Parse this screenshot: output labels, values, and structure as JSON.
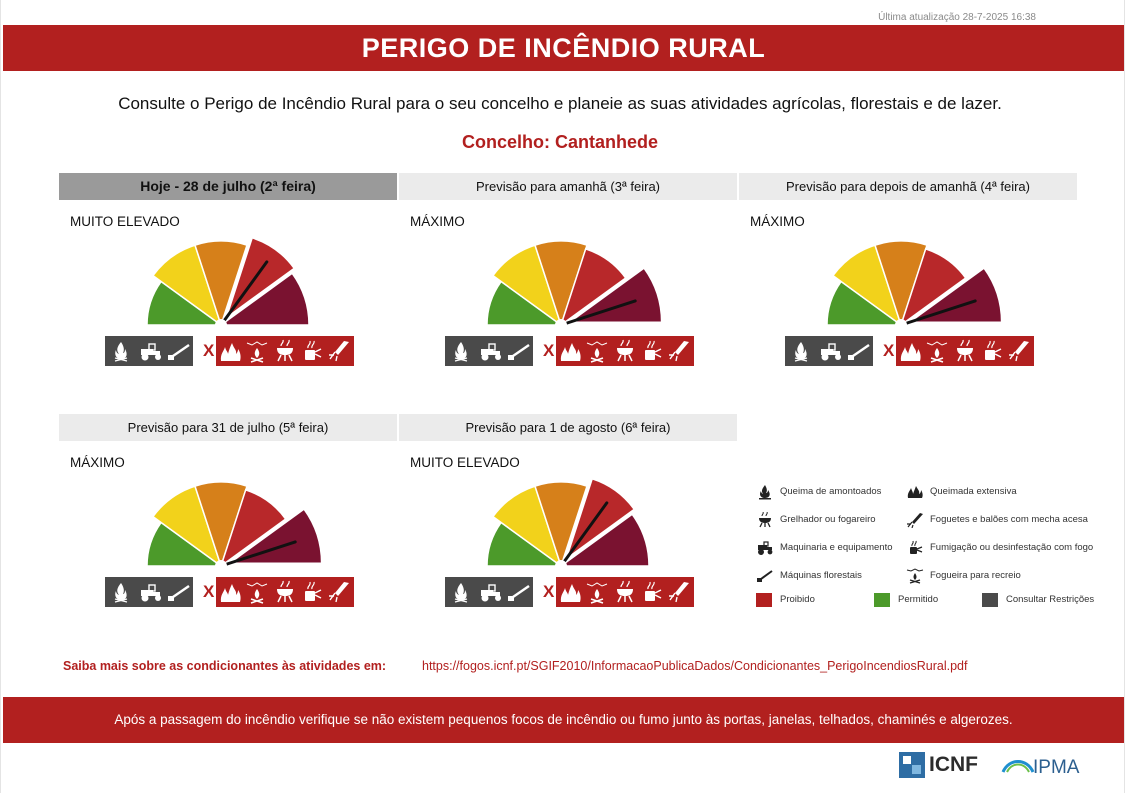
{
  "updated": "Última atualização 28-7-2025 16:38",
  "title": "PERIGO DE INCÊNDIO RURAL",
  "intro": "Consulte o Perigo de Incêndio Rural para o seu concelho e planeie as suas atividades agrícolas, florestais e de lazer.",
  "concelho": "Concelho: Cantanhede",
  "colors": {
    "brand_red": "#b2201f",
    "low": "#4c9a2a",
    "moderate": "#f2d21b",
    "high": "#d6801a",
    "very_high": "#b8282a",
    "maximum": "#7a1230",
    "consult": "#4a4a4a",
    "today_header": "#9a9a9a"
  },
  "days": [
    {
      "header": "Hoje - 28 de julho (2ª feira)",
      "level": "MUITO ELEVADO",
      "level_index": 3,
      "today": true
    },
    {
      "header": "Previsão para amanhã (3ª feira)",
      "level": "MÁXIMO",
      "level_index": 4,
      "today": false
    },
    {
      "header": "Previsão para depois de amanhã (4ª feira)",
      "level": "MÁXIMO",
      "level_index": 4,
      "today": false
    },
    {
      "header": "Previsão para 31 de julho (5ª feira)",
      "level": "MÁXIMO",
      "level_index": 4,
      "today": false
    },
    {
      "header": "Previsão para 1 de agosto (6ª feira)",
      "level": "MUITO ELEVADO",
      "level_index": 3,
      "today": false
    }
  ],
  "legend": {
    "items": [
      {
        "icon": "fire-pile-icon",
        "label": "Queima de amontoados"
      },
      {
        "icon": "wide-fire-icon",
        "label": "Queimada extensiva"
      },
      {
        "icon": "grill-icon",
        "label": "Grelhador ou fogareiro"
      },
      {
        "icon": "rocket-icon",
        "label": "Foguetes e balões com mecha acesa"
      },
      {
        "icon": "tractor-icon",
        "label": "Maquinaria e equipamento"
      },
      {
        "icon": "smoker-icon",
        "label": "Fumigação ou desinfestação com fogo"
      },
      {
        "icon": "chainsaw-icon",
        "label": "Máquinas florestais"
      },
      {
        "icon": "bonfire-icon",
        "label": "Fogueira para recreio"
      }
    ],
    "status": [
      {
        "label": "Proibido",
        "color": "#b2201f"
      },
      {
        "label": "Permitido",
        "color": "#4c9a2a"
      },
      {
        "label": "Consultar Restrições",
        "color": "#4a4a4a"
      }
    ]
  },
  "more": {
    "label": "Saiba mais sobre as condicionantes às atividades em:",
    "url": "https://fogos.icnf.pt/SGIF2010/InformacaoPublicaDados/Condicionantes_PerigoIncendiosRural.pdf"
  },
  "footer": "Após a passagem do incêndio verifique se não existem pequenos focos de incêndio ou fumo junto às portas, janelas, telhados, chaminés e algerozes.",
  "logos": {
    "icnf": "ICNF",
    "ipma": "IPMA"
  }
}
